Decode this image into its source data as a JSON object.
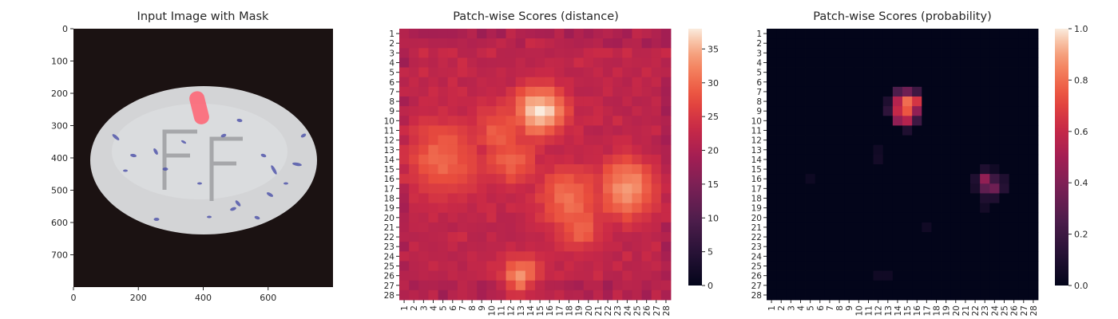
{
  "colors": {
    "background_dark": "#1b1212",
    "mask": "#ff5a6a",
    "tablet": "#d8d9db",
    "speckle": "#4a4fa8"
  },
  "chart_data": [
    {
      "type": "image",
      "title": "Input Image with Mask",
      "x_ticks": [
        0,
        200,
        400,
        600
      ],
      "y_ticks": [
        0,
        100,
        200,
        300,
        400,
        500,
        600,
        700
      ],
      "xlim": [
        0,
        800
      ],
      "ylim": [
        0,
        800
      ],
      "content": "tablet with embossed FF letters; red mask near top",
      "icon": "tablet-photo"
    },
    {
      "type": "heatmap",
      "title": "Patch-wise Scores (distance)",
      "grid_size": 28,
      "colorbar": {
        "range": [
          0,
          38
        ],
        "ticks": [
          0,
          5,
          10,
          15,
          20,
          25,
          30,
          35
        ]
      },
      "hotspots": [
        {
          "row": 9,
          "col": 15,
          "value": 38,
          "spread": 1.9
        },
        {
          "row": 17,
          "col": 24,
          "value": 34,
          "spread": 2.3
        },
        {
          "row": 14,
          "col": 5,
          "value": 30,
          "spread": 3.0
        },
        {
          "row": 18,
          "col": 18,
          "value": 31,
          "spread": 2.4
        },
        {
          "row": 21,
          "col": 19,
          "value": 30,
          "spread": 1.8
        },
        {
          "row": 26,
          "col": 13,
          "value": 33,
          "spread": 1.5
        },
        {
          "row": 11,
          "col": 11,
          "value": 29,
          "spread": 2.2
        },
        {
          "row": 14,
          "col": 12,
          "value": 30,
          "spread": 2.0
        }
      ],
      "base_value": 21
    },
    {
      "type": "heatmap",
      "title": "Patch-wise Scores (probability)",
      "grid_size": 28,
      "colorbar": {
        "range": [
          0,
          1
        ],
        "ticks": [
          "0.0",
          "0.2",
          "0.4",
          "0.6",
          "0.8",
          "1.0"
        ]
      },
      "cells": [
        {
          "row": 7,
          "col": 14,
          "value": 0.25
        },
        {
          "row": 7,
          "col": 15,
          "value": 0.35
        },
        {
          "row": 7,
          "col": 16,
          "value": 0.2
        },
        {
          "row": 8,
          "col": 13,
          "value": 0.1
        },
        {
          "row": 8,
          "col": 14,
          "value": 0.55
        },
        {
          "row": 8,
          "col": 15,
          "value": 0.8
        },
        {
          "row": 8,
          "col": 16,
          "value": 0.65
        },
        {
          "row": 9,
          "col": 13,
          "value": 0.15
        },
        {
          "row": 9,
          "col": 14,
          "value": 0.6
        },
        {
          "row": 9,
          "col": 15,
          "value": 0.75
        },
        {
          "row": 9,
          "col": 16,
          "value": 0.45
        },
        {
          "row": 10,
          "col": 14,
          "value": 0.45
        },
        {
          "row": 10,
          "col": 15,
          "value": 0.55
        },
        {
          "row": 10,
          "col": 16,
          "value": 0.2
        },
        {
          "row": 11,
          "col": 15,
          "value": 0.1
        },
        {
          "row": 15,
          "col": 23,
          "value": 0.1
        },
        {
          "row": 15,
          "col": 24,
          "value": 0.05
        },
        {
          "row": 16,
          "col": 22,
          "value": 0.1
        },
        {
          "row": 16,
          "col": 23,
          "value": 0.45
        },
        {
          "row": 16,
          "col": 24,
          "value": 0.2
        },
        {
          "row": 16,
          "col": 25,
          "value": 0.1
        },
        {
          "row": 17,
          "col": 22,
          "value": 0.08
        },
        {
          "row": 17,
          "col": 23,
          "value": 0.3
        },
        {
          "row": 17,
          "col": 24,
          "value": 0.35
        },
        {
          "row": 17,
          "col": 25,
          "value": 0.12
        },
        {
          "row": 18,
          "col": 23,
          "value": 0.1
        },
        {
          "row": 18,
          "col": 24,
          "value": 0.1
        },
        {
          "row": 19,
          "col": 23,
          "value": 0.06
        },
        {
          "row": 13,
          "col": 12,
          "value": 0.05
        },
        {
          "row": 14,
          "col": 12,
          "value": 0.06
        },
        {
          "row": 16,
          "col": 5,
          "value": 0.04
        },
        {
          "row": 21,
          "col": 17,
          "value": 0.05
        },
        {
          "row": 26,
          "col": 12,
          "value": 0.05
        },
        {
          "row": 26,
          "col": 13,
          "value": 0.05
        }
      ]
    }
  ]
}
